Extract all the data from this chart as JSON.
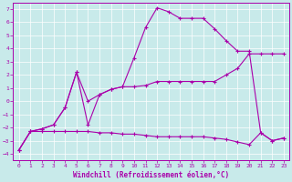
{
  "xlabel": "Windchill (Refroidissement éolien,°C)",
  "xlim": [
    -0.5,
    23.5
  ],
  "ylim": [
    -4.5,
    7.5
  ],
  "xticks": [
    0,
    1,
    2,
    3,
    4,
    5,
    6,
    7,
    8,
    9,
    10,
    11,
    12,
    13,
    14,
    15,
    16,
    17,
    18,
    19,
    20,
    21,
    22,
    23
  ],
  "yticks": [
    -4,
    -3,
    -2,
    -1,
    0,
    1,
    2,
    3,
    4,
    5,
    6,
    7
  ],
  "bg_color": "#c8eaea",
  "line_color": "#aa00aa",
  "line1_x": [
    0,
    1,
    2,
    3,
    4,
    5,
    6,
    7,
    8,
    9,
    10,
    11,
    12,
    13,
    14,
    15,
    16,
    17,
    18,
    19,
    20,
    21,
    22,
    23
  ],
  "line1_y": [
    -3.7,
    -2.3,
    -2.3,
    -2.3,
    -2.3,
    -2.3,
    -2.3,
    -2.4,
    -2.4,
    -2.5,
    -2.5,
    -2.6,
    -2.7,
    -2.7,
    -2.7,
    -2.7,
    -2.7,
    -2.8,
    -2.9,
    -3.1,
    -3.3,
    -2.4,
    -3.0,
    -2.8
  ],
  "line2_x": [
    0,
    1,
    2,
    3,
    4,
    5,
    6,
    7,
    8,
    9,
    10,
    11,
    12,
    13,
    14,
    15,
    16,
    17,
    18,
    19,
    20,
    21,
    22,
    23
  ],
  "line2_y": [
    -3.7,
    -2.3,
    -2.1,
    -1.8,
    -0.5,
    2.2,
    -1.8,
    0.5,
    0.9,
    1.1,
    1.1,
    1.2,
    1.5,
    1.5,
    1.5,
    1.5,
    1.5,
    1.5,
    2.0,
    2.5,
    3.6,
    3.6,
    3.6,
    3.6
  ],
  "line3_x": [
    0,
    1,
    2,
    3,
    4,
    5,
    6,
    7,
    8,
    9,
    10,
    11,
    12,
    13,
    14,
    15,
    16,
    17,
    18,
    19,
    20,
    21,
    22,
    23
  ],
  "line3_y": [
    -3.7,
    -2.3,
    -2.1,
    -1.8,
    -0.5,
    2.2,
    0.0,
    0.5,
    0.9,
    1.1,
    3.3,
    5.6,
    7.1,
    6.8,
    6.3,
    6.3,
    6.3,
    5.5,
    4.6,
    3.8,
    3.8,
    -2.4,
    -3.0,
    -2.8
  ]
}
